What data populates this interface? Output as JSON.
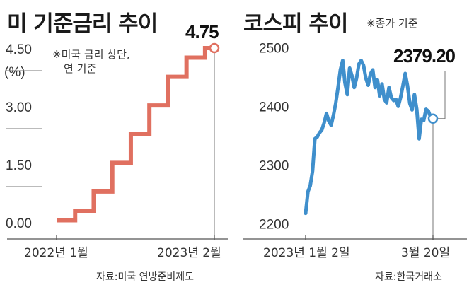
{
  "chart_data": [
    {
      "type": "line",
      "title": "미 기준금리 추이",
      "note": [
        "※미국 금리 상단,",
        "연 기준"
      ],
      "unit_label": "(%)",
      "source": "자료:미국 연방준비제도",
      "ylim": [
        0,
        4.75
      ],
      "yticks": [
        "4.50",
        "3.00",
        "1.50",
        "0.00"
      ],
      "ytick_values": [
        4.5,
        3.0,
        1.5,
        0.0
      ],
      "xticks": [
        "2022년 1월",
        "2023년 2월"
      ],
      "end_label": "4.75",
      "color": "#e07060",
      "step": true,
      "series": [
        {
          "values": [
            0.25,
            0.25,
            0.5,
            0.5,
            1.0,
            1.0,
            1.75,
            1.75,
            2.5,
            2.5,
            3.25,
            3.25,
            4.0,
            4.0,
            4.5,
            4.5,
            4.75,
            4.75
          ]
        }
      ]
    },
    {
      "type": "line",
      "title": "코스피 추이",
      "note": [
        "※종가 기준"
      ],
      "source": "자료:한국거래소",
      "ylim": [
        2190,
        2510
      ],
      "yticks": [
        "2500",
        "2400",
        "2300",
        "2200"
      ],
      "ytick_values": [
        2500,
        2400,
        2300,
        2200
      ],
      "xticks": [
        "2023년 1월 2일",
        "3월 20일"
      ],
      "end_label": "2379.20",
      "color": "#3f8fcc",
      "series": [
        {
          "values": [
            2218,
            2255,
            2265,
            2290,
            2345,
            2348,
            2355,
            2360,
            2372,
            2388,
            2375,
            2368,
            2385,
            2405,
            2432,
            2462,
            2478,
            2440,
            2420,
            2465,
            2452,
            2432,
            2448,
            2472,
            2478,
            2470,
            2448,
            2436,
            2455,
            2462,
            2432,
            2445,
            2418,
            2438,
            2412,
            2406,
            2432,
            2415,
            2410,
            2412,
            2400,
            2415,
            2435,
            2456,
            2435,
            2405,
            2394,
            2420,
            2395,
            2345,
            2378,
            2376,
            2395,
            2392,
            2382,
            2379.2
          ]
        }
      ]
    }
  ]
}
